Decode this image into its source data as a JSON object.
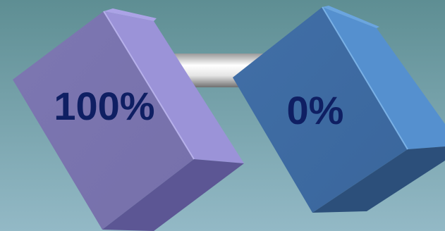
{
  "left_block": {
    "label": "100%",
    "value_percent": 100
  },
  "right_block": {
    "label": "0%",
    "value_percent": 0
  },
  "colors": {
    "background_top": "#5f8f94",
    "background_bottom": "#8fb6c2",
    "left_front": "#7f78b6",
    "left_side": "#9a92d6",
    "left_top": "#a79fe2",
    "left_bottom": "#5a5490",
    "right_front": "#3f6fa6",
    "right_side": "#5590cf",
    "right_top": "#6aa2dc",
    "right_bottom": "#2c4e78",
    "label_color": "#0f1f63",
    "bar_light": "#f4f4f4",
    "bar_dark": "#7a7a7a"
  }
}
